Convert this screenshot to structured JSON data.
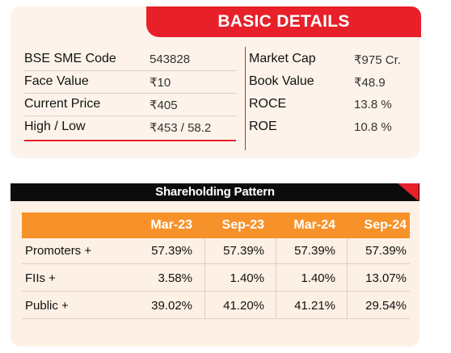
{
  "basic_details": {
    "title": "BASIC DETAILS",
    "left": [
      {
        "label": "BSE SME Code",
        "value": "543828"
      },
      {
        "label": "Face Value",
        "value": "₹10"
      },
      {
        "label": "Current Price",
        "value": "₹405"
      },
      {
        "label": "High / Low",
        "value": "₹453 / 58.2"
      }
    ],
    "right": [
      {
        "label": "Market Cap",
        "value": "₹975 Cr."
      },
      {
        "label": "Book Value",
        "value": "₹48.9"
      },
      {
        "label": "ROCE",
        "value": "13.8 %"
      },
      {
        "label": "ROE",
        "value": "10.8 %"
      }
    ]
  },
  "shareholding": {
    "title": "Shareholding Pattern",
    "columns": [
      "Mar-23",
      "Sep-23",
      "Mar-24",
      "Sep-24"
    ],
    "rows": [
      {
        "name": "Promoters +",
        "values": [
          "57.39%",
          "57.39%",
          "57.39%",
          "57.39%"
        ]
      },
      {
        "name": "FIIs +",
        "values": [
          "3.58%",
          "1.40%",
          "1.40%",
          "13.07%"
        ]
      },
      {
        "name": "Public +",
        "values": [
          "39.02%",
          "41.20%",
          "41.21%",
          "29.54%"
        ]
      }
    ]
  },
  "colors": {
    "accent_red": "#e8202a",
    "accent_orange": "#f7922a",
    "panel_bg": "#fdf3ea"
  }
}
